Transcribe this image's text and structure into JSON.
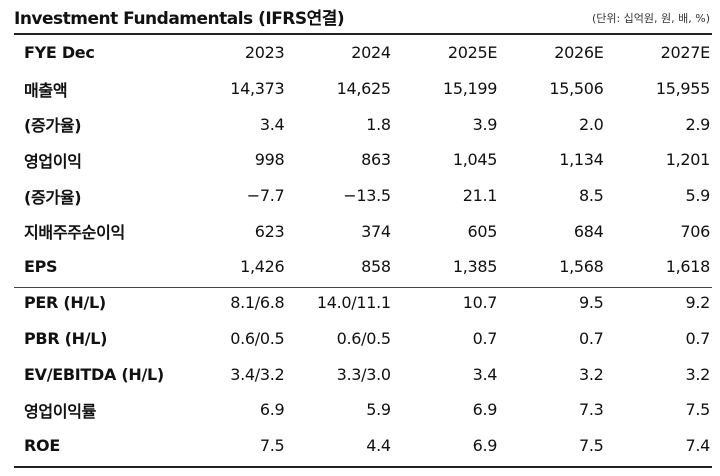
{
  "header": {
    "title": "Investment Fundamentals (IFRS연결)",
    "unit": "(단위: 십억원, 원, 배, %)"
  },
  "table": {
    "columns": [
      "FYE Dec",
      "2023",
      "2024",
      "2025E",
      "2026E",
      "2027E"
    ],
    "rows": [
      {
        "label": "매출액",
        "values": [
          "14,373",
          "14,625",
          "15,199",
          "15,506",
          "15,955"
        ]
      },
      {
        "label": "(증가율)",
        "values": [
          "3.4",
          "1.8",
          "3.9",
          "2.0",
          "2.9"
        ]
      },
      {
        "label": "영업이익",
        "values": [
          "998",
          "863",
          "1,045",
          "1,134",
          "1,201"
        ]
      },
      {
        "label": "(증가율)",
        "values": [
          "−7.7",
          "−13.5",
          "21.1",
          "8.5",
          "5.9"
        ]
      },
      {
        "label": "지배주주순이익",
        "values": [
          "623",
          "374",
          "605",
          "684",
          "706"
        ]
      },
      {
        "label": "EPS",
        "values": [
          "1,426",
          "858",
          "1,385",
          "1,568",
          "1,618"
        ]
      },
      {
        "label": "PER (H/L)",
        "values": [
          "8.1/6.8",
          "14.0/11.1",
          "10.7",
          "9.5",
          "9.2"
        ]
      },
      {
        "label": "PBR (H/L)",
        "values": [
          "0.6/0.5",
          "0.6/0.5",
          "0.7",
          "0.7",
          "0.7"
        ]
      },
      {
        "label": "EV/EBITDA (H/L)",
        "values": [
          "3.4/3.2",
          "3.3/3.0",
          "3.4",
          "3.2",
          "3.2"
        ]
      },
      {
        "label": "영업이익률",
        "values": [
          "6.9",
          "5.9",
          "6.9",
          "7.3",
          "7.5"
        ]
      },
      {
        "label": "ROE",
        "values": [
          "7.5",
          "4.4",
          "6.9",
          "7.5",
          "7.4"
        ]
      }
    ]
  }
}
